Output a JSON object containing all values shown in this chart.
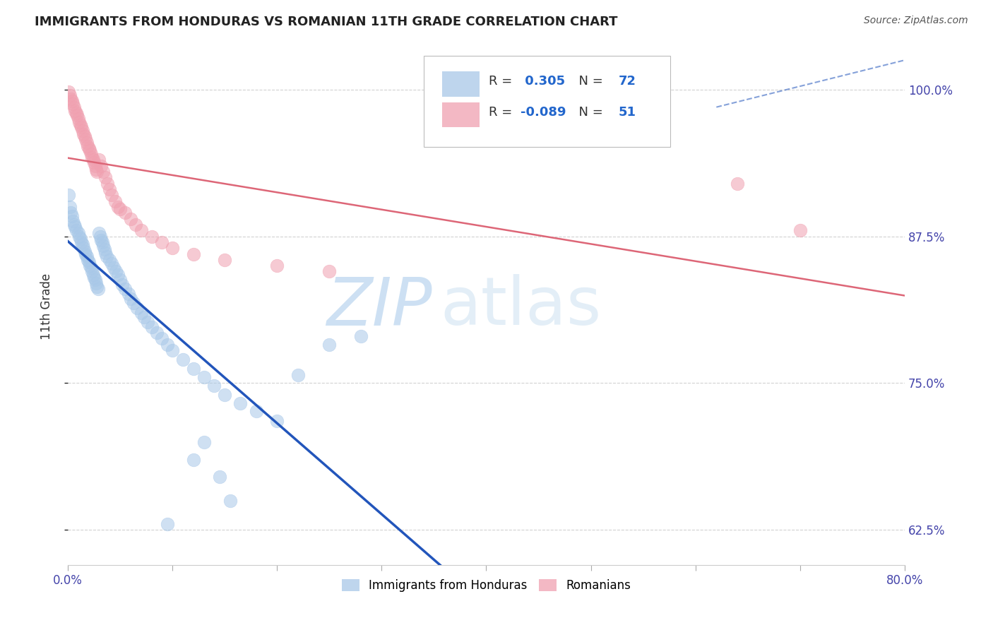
{
  "title": "IMMIGRANTS FROM HONDURAS VS ROMANIAN 11TH GRADE CORRELATION CHART",
  "source": "Source: ZipAtlas.com",
  "ylabel": "11th Grade",
  "legend_blue_label": "Immigrants from Honduras",
  "legend_pink_label": "Romanians",
  "R_blue": 0.305,
  "N_blue": 72,
  "R_pink": -0.089,
  "N_pink": 51,
  "blue_color": "#a8c8e8",
  "pink_color": "#f0a0b0",
  "blue_line_color": "#2255bb",
  "pink_line_color": "#dd6677",
  "watermark_zip": "ZIP",
  "watermark_atlas": "atlas",
  "xlim": [
    0.0,
    0.8
  ],
  "ylim": [
    0.595,
    1.035
  ],
  "yticks": [
    1.0,
    0.875,
    0.75,
    0.625
  ],
  "xtick_positions": [
    0.0,
    0.1,
    0.2,
    0.3,
    0.4,
    0.5,
    0.6,
    0.7,
    0.8
  ],
  "xtick_major": [
    0.0,
    0.4,
    0.8
  ],
  "grid_color": "#cccccc",
  "axis_color": "#4444aa",
  "background_color": "#ffffff",
  "blue_points": [
    [
      0.001,
      0.91
    ],
    [
      0.002,
      0.9
    ],
    [
      0.003,
      0.895
    ],
    [
      0.004,
      0.892
    ],
    [
      0.005,
      0.888
    ],
    [
      0.006,
      0.885
    ],
    [
      0.007,
      0.883
    ],
    [
      0.008,
      0.88
    ],
    [
      0.01,
      0.878
    ],
    [
      0.011,
      0.875
    ],
    [
      0.012,
      0.873
    ],
    [
      0.013,
      0.87
    ],
    [
      0.014,
      0.868
    ],
    [
      0.015,
      0.865
    ],
    [
      0.016,
      0.862
    ],
    [
      0.017,
      0.86
    ],
    [
      0.018,
      0.858
    ],
    [
      0.019,
      0.855
    ],
    [
      0.02,
      0.853
    ],
    [
      0.021,
      0.85
    ],
    [
      0.022,
      0.848
    ],
    [
      0.023,
      0.845
    ],
    [
      0.024,
      0.842
    ],
    [
      0.025,
      0.84
    ],
    [
      0.026,
      0.838
    ],
    [
      0.027,
      0.835
    ],
    [
      0.028,
      0.832
    ],
    [
      0.029,
      0.83
    ],
    [
      0.03,
      0.878
    ],
    [
      0.031,
      0.875
    ],
    [
      0.032,
      0.872
    ],
    [
      0.033,
      0.87
    ],
    [
      0.034,
      0.867
    ],
    [
      0.035,
      0.864
    ],
    [
      0.036,
      0.861
    ],
    [
      0.037,
      0.858
    ],
    [
      0.04,
      0.855
    ],
    [
      0.042,
      0.852
    ],
    [
      0.044,
      0.848
    ],
    [
      0.046,
      0.845
    ],
    [
      0.048,
      0.842
    ],
    [
      0.05,
      0.838
    ],
    [
      0.052,
      0.834
    ],
    [
      0.055,
      0.83
    ],
    [
      0.058,
      0.826
    ],
    [
      0.06,
      0.822
    ],
    [
      0.063,
      0.818
    ],
    [
      0.066,
      0.814
    ],
    [
      0.07,
      0.81
    ],
    [
      0.073,
      0.806
    ],
    [
      0.076,
      0.802
    ],
    [
      0.08,
      0.798
    ],
    [
      0.085,
      0.793
    ],
    [
      0.09,
      0.788
    ],
    [
      0.095,
      0.783
    ],
    [
      0.1,
      0.778
    ],
    [
      0.11,
      0.77
    ],
    [
      0.12,
      0.762
    ],
    [
      0.13,
      0.755
    ],
    [
      0.14,
      0.748
    ],
    [
      0.15,
      0.74
    ],
    [
      0.165,
      0.733
    ],
    [
      0.18,
      0.726
    ],
    [
      0.2,
      0.718
    ],
    [
      0.22,
      0.757
    ],
    [
      0.25,
      0.783
    ],
    [
      0.28,
      0.79
    ],
    [
      0.12,
      0.685
    ],
    [
      0.13,
      0.7
    ],
    [
      0.145,
      0.67
    ],
    [
      0.155,
      0.65
    ],
    [
      0.095,
      0.63
    ]
  ],
  "pink_points": [
    [
      0.001,
      0.998
    ],
    [
      0.002,
      0.995
    ],
    [
      0.003,
      0.992
    ],
    [
      0.004,
      0.99
    ],
    [
      0.005,
      0.988
    ],
    [
      0.006,
      0.985
    ],
    [
      0.007,
      0.982
    ],
    [
      0.008,
      0.98
    ],
    [
      0.009,
      0.978
    ],
    [
      0.01,
      0.975
    ],
    [
      0.011,
      0.972
    ],
    [
      0.012,
      0.97
    ],
    [
      0.013,
      0.968
    ],
    [
      0.014,
      0.965
    ],
    [
      0.015,
      0.962
    ],
    [
      0.016,
      0.96
    ],
    [
      0.017,
      0.958
    ],
    [
      0.018,
      0.955
    ],
    [
      0.019,
      0.952
    ],
    [
      0.02,
      0.95
    ],
    [
      0.021,
      0.948
    ],
    [
      0.022,
      0.945
    ],
    [
      0.023,
      0.942
    ],
    [
      0.024,
      0.94
    ],
    [
      0.025,
      0.938
    ],
    [
      0.026,
      0.935
    ],
    [
      0.027,
      0.932
    ],
    [
      0.028,
      0.93
    ],
    [
      0.03,
      0.94
    ],
    [
      0.032,
      0.935
    ],
    [
      0.034,
      0.93
    ],
    [
      0.036,
      0.925
    ],
    [
      0.038,
      0.92
    ],
    [
      0.04,
      0.915
    ],
    [
      0.042,
      0.91
    ],
    [
      0.045,
      0.905
    ],
    [
      0.048,
      0.9
    ],
    [
      0.05,
      0.898
    ],
    [
      0.055,
      0.895
    ],
    [
      0.06,
      0.89
    ],
    [
      0.065,
      0.885
    ],
    [
      0.07,
      0.88
    ],
    [
      0.08,
      0.875
    ],
    [
      0.09,
      0.87
    ],
    [
      0.1,
      0.865
    ],
    [
      0.12,
      0.86
    ],
    [
      0.15,
      0.855
    ],
    [
      0.2,
      0.85
    ],
    [
      0.25,
      0.845
    ],
    [
      0.64,
      0.92
    ],
    [
      0.7,
      0.88
    ]
  ]
}
